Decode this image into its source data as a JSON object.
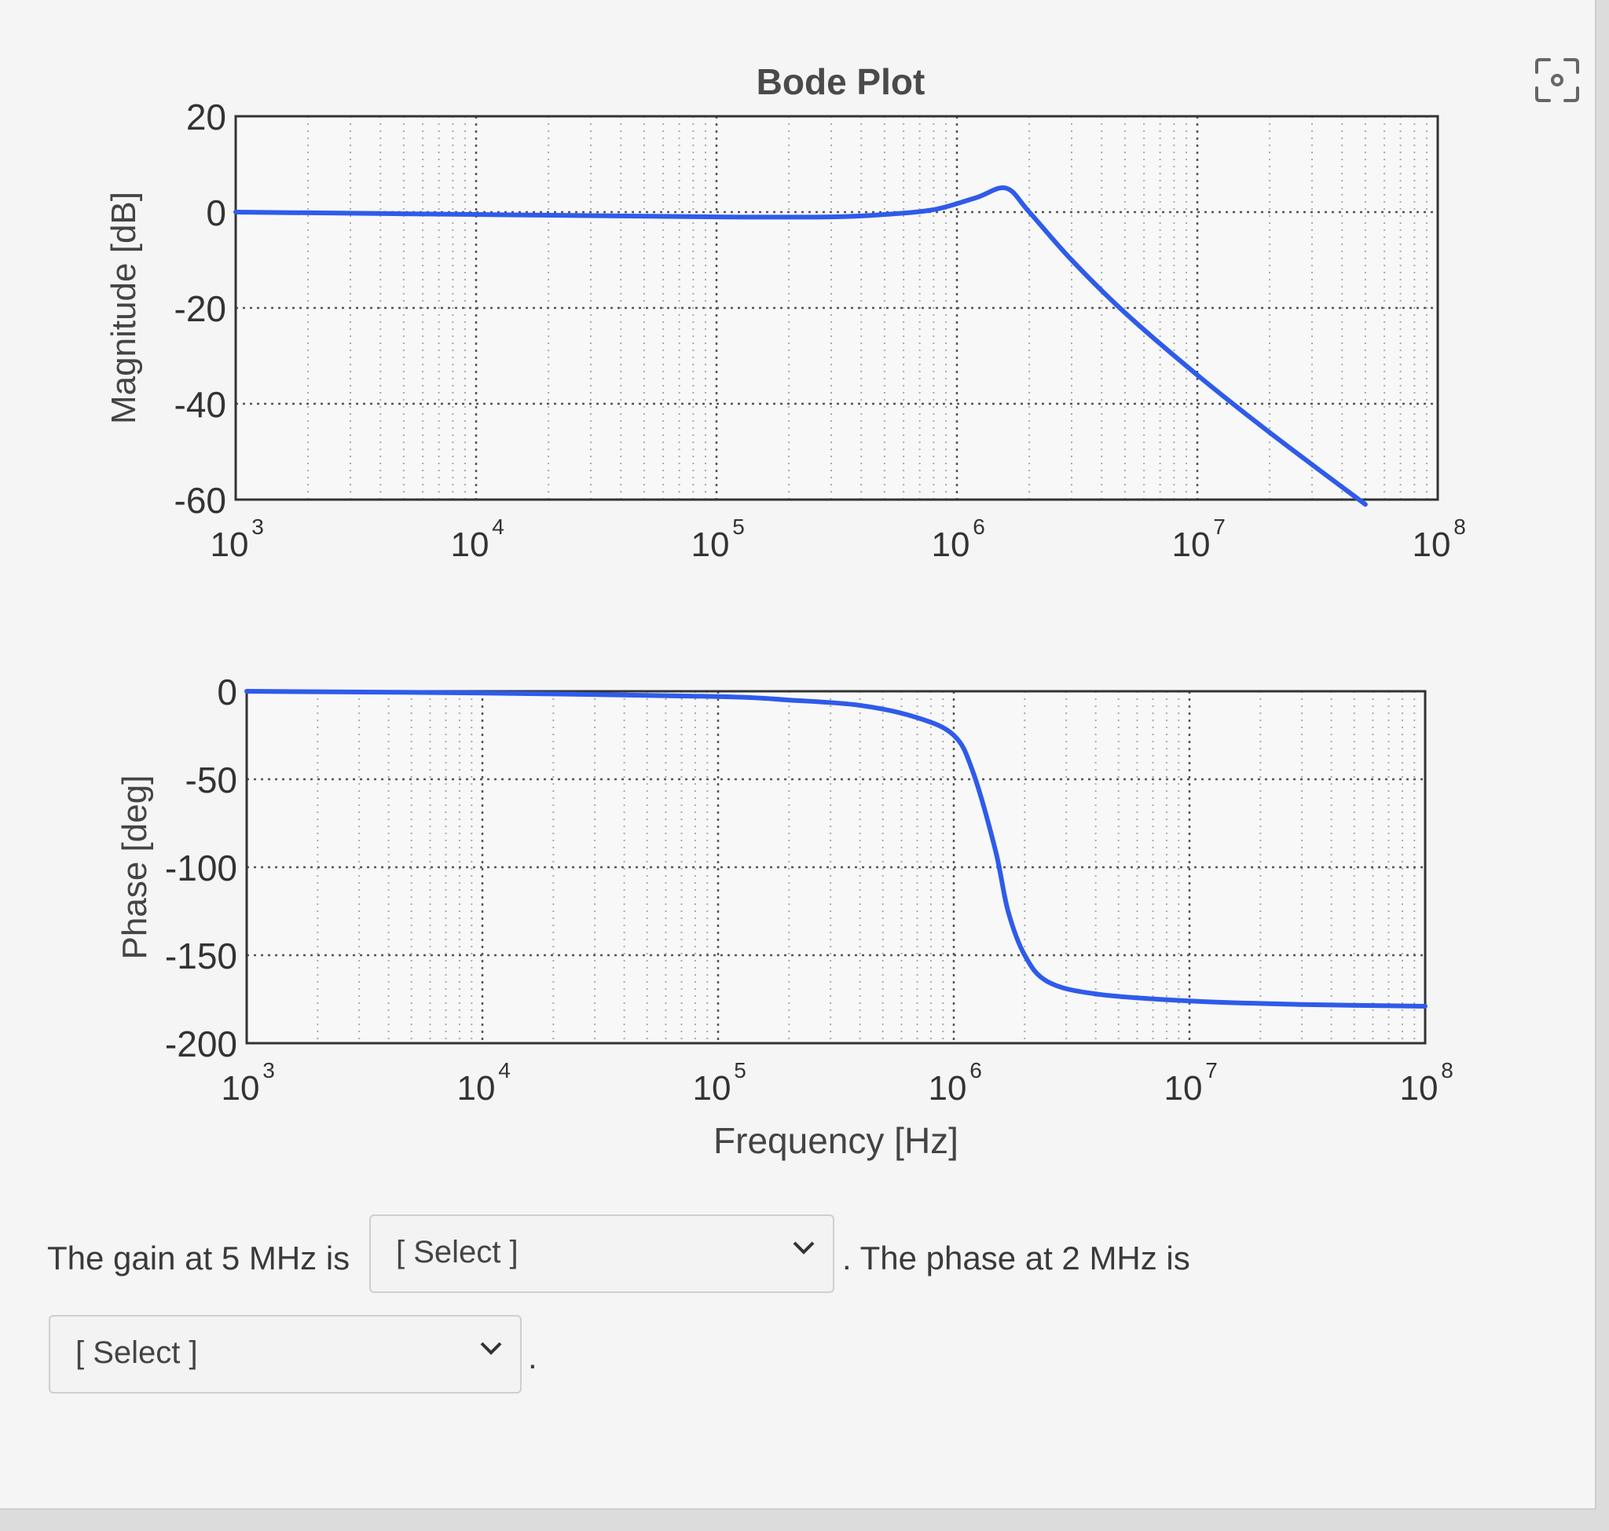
{
  "colors": {
    "curve": "#2f5bea",
    "axis": "#333333",
    "grid": "#888888"
  },
  "chart_data": [
    {
      "type": "line",
      "title": "Bode Plot",
      "xlabel": "",
      "ylabel": "Magnitude    [dB]",
      "xscale": "log",
      "xlim": [
        1000,
        100000000
      ],
      "ylim": [
        -60,
        20
      ],
      "grid": true,
      "x_ticks": [
        {
          "base": "10",
          "exp": "3",
          "value": 1000
        },
        {
          "base": "10",
          "exp": "4",
          "value": 10000
        },
        {
          "base": "10",
          "exp": "5",
          "value": 100000
        },
        {
          "base": "10",
          "exp": "6",
          "value": 1000000
        },
        {
          "base": "10",
          "exp": "7",
          "value": 10000000
        },
        {
          "base": "10",
          "exp": "8",
          "value": 100000000
        }
      ],
      "y_ticks": [
        "20",
        "0",
        "-20",
        "-40",
        "-60"
      ],
      "y_tick_values": [
        20,
        0,
        -20,
        -40,
        -60
      ],
      "series": [
        {
          "x": [
            1000,
            10000,
            100000,
            300000,
            500000,
            800000,
            1200000,
            1600000,
            2000000,
            3000000,
            5000000,
            10000000,
            20000000,
            50000000
          ],
          "y": [
            0,
            -0.5,
            -1,
            -1,
            -0.5,
            0.5,
            3,
            5,
            0,
            -10,
            -21,
            -34,
            -46,
            -61
          ]
        }
      ]
    },
    {
      "type": "line",
      "title": "",
      "xlabel": "Frequency    [Hz]",
      "ylabel": "Phase    [deg]",
      "xscale": "log",
      "xlim": [
        1000,
        100000000
      ],
      "ylim": [
        -200,
        0
      ],
      "grid": true,
      "x_ticks": [
        {
          "base": "10",
          "exp": "3",
          "value": 1000
        },
        {
          "base": "10",
          "exp": "4",
          "value": 10000
        },
        {
          "base": "10",
          "exp": "5",
          "value": 100000
        },
        {
          "base": "10",
          "exp": "6",
          "value": 1000000
        },
        {
          "base": "10",
          "exp": "7",
          "value": 10000000
        },
        {
          "base": "10",
          "exp": "8",
          "value": 100000000
        }
      ],
      "y_ticks": [
        "0",
        "-50",
        "-100",
        "-150",
        "-200"
      ],
      "y_tick_values": [
        0,
        -50,
        -100,
        -150,
        -200
      ],
      "series": [
        {
          "x": [
            1000,
            10000,
            100000,
            200000,
            400000,
            700000,
            1000000,
            1200000,
            1500000,
            1700000,
            2000000,
            2500000,
            4000000,
            10000000,
            30000000,
            100000000
          ],
          "y": [
            0,
            -1,
            -3,
            -5,
            -8,
            -15,
            -25,
            -45,
            -90,
            -125,
            -150,
            -165,
            -172,
            -176,
            -178,
            -179
          ]
        }
      ]
    }
  ],
  "question": {
    "part1": "The gain at 5 MHz is",
    "part2": ". The phase at 2 MHz is",
    "end": ".",
    "select1": "[ Select ]",
    "select2": "[ Select ]"
  }
}
